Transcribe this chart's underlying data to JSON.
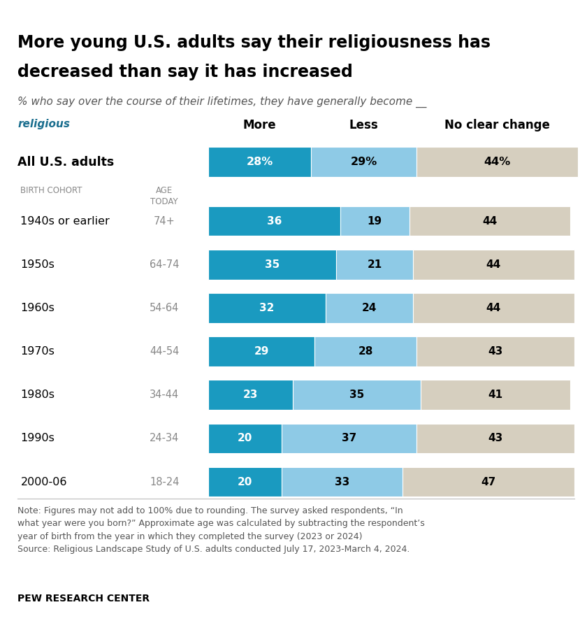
{
  "title_line1": "More young U.S. adults say their religiousness has",
  "title_line2": "decreased than say it has increased",
  "subtitle_italic": "% who say over the course of their lifetimes, they have generally become __",
  "subtitle_bold_italic": "religious",
  "col_headers": [
    "More",
    "Less",
    "No clear change"
  ],
  "all_adults_label": "All U.S. adults",
  "all_adults_data": [
    28,
    29,
    44
  ],
  "all_adults_labels": [
    "28%",
    "29%",
    "44%"
  ],
  "birth_cohort_header": "BIRTH COHORT",
  "age_today_header": "AGE\nTODAY",
  "rows": [
    {
      "cohort": "1940s or earlier",
      "age": "74+",
      "more": 36,
      "less": 19,
      "no_change": 44
    },
    {
      "cohort": "1950s",
      "age": "64-74",
      "more": 35,
      "less": 21,
      "no_change": 44
    },
    {
      "cohort": "1960s",
      "age": "54-64",
      "more": 32,
      "less": 24,
      "no_change": 44
    },
    {
      "cohort": "1970s",
      "age": "44-54",
      "more": 29,
      "less": 28,
      "no_change": 43
    },
    {
      "cohort": "1980s",
      "age": "34-44",
      "more": 23,
      "less": 35,
      "no_change": 41
    },
    {
      "cohort": "1990s",
      "age": "24-34",
      "more": 20,
      "less": 37,
      "no_change": 43
    },
    {
      "cohort": "2000-06",
      "age": "18-24",
      "more": 20,
      "less": 33,
      "no_change": 47
    }
  ],
  "color_more": "#1a9ac0",
  "color_less": "#8ecae6",
  "color_no_change": "#d6cfbf",
  "color_title": "#000000",
  "color_subtitle": "#555555",
  "color_note": "#555555",
  "color_header": "#888888",
  "color_bold_italic": "#1a6e8e",
  "note_text": "Note: Figures may not add to 100% due to rounding. The survey asked respondents, “In\nwhat year were you born?” Approximate age was calculated by subtracting the respondent’s\nyear of birth from the year in which they completed the survey (2023 or 2024)\nSource: Religious Landscape Study of U.S. adults conducted July 17, 2023-March 4, 2024.",
  "footer": "PEW RESEARCH CENTER"
}
